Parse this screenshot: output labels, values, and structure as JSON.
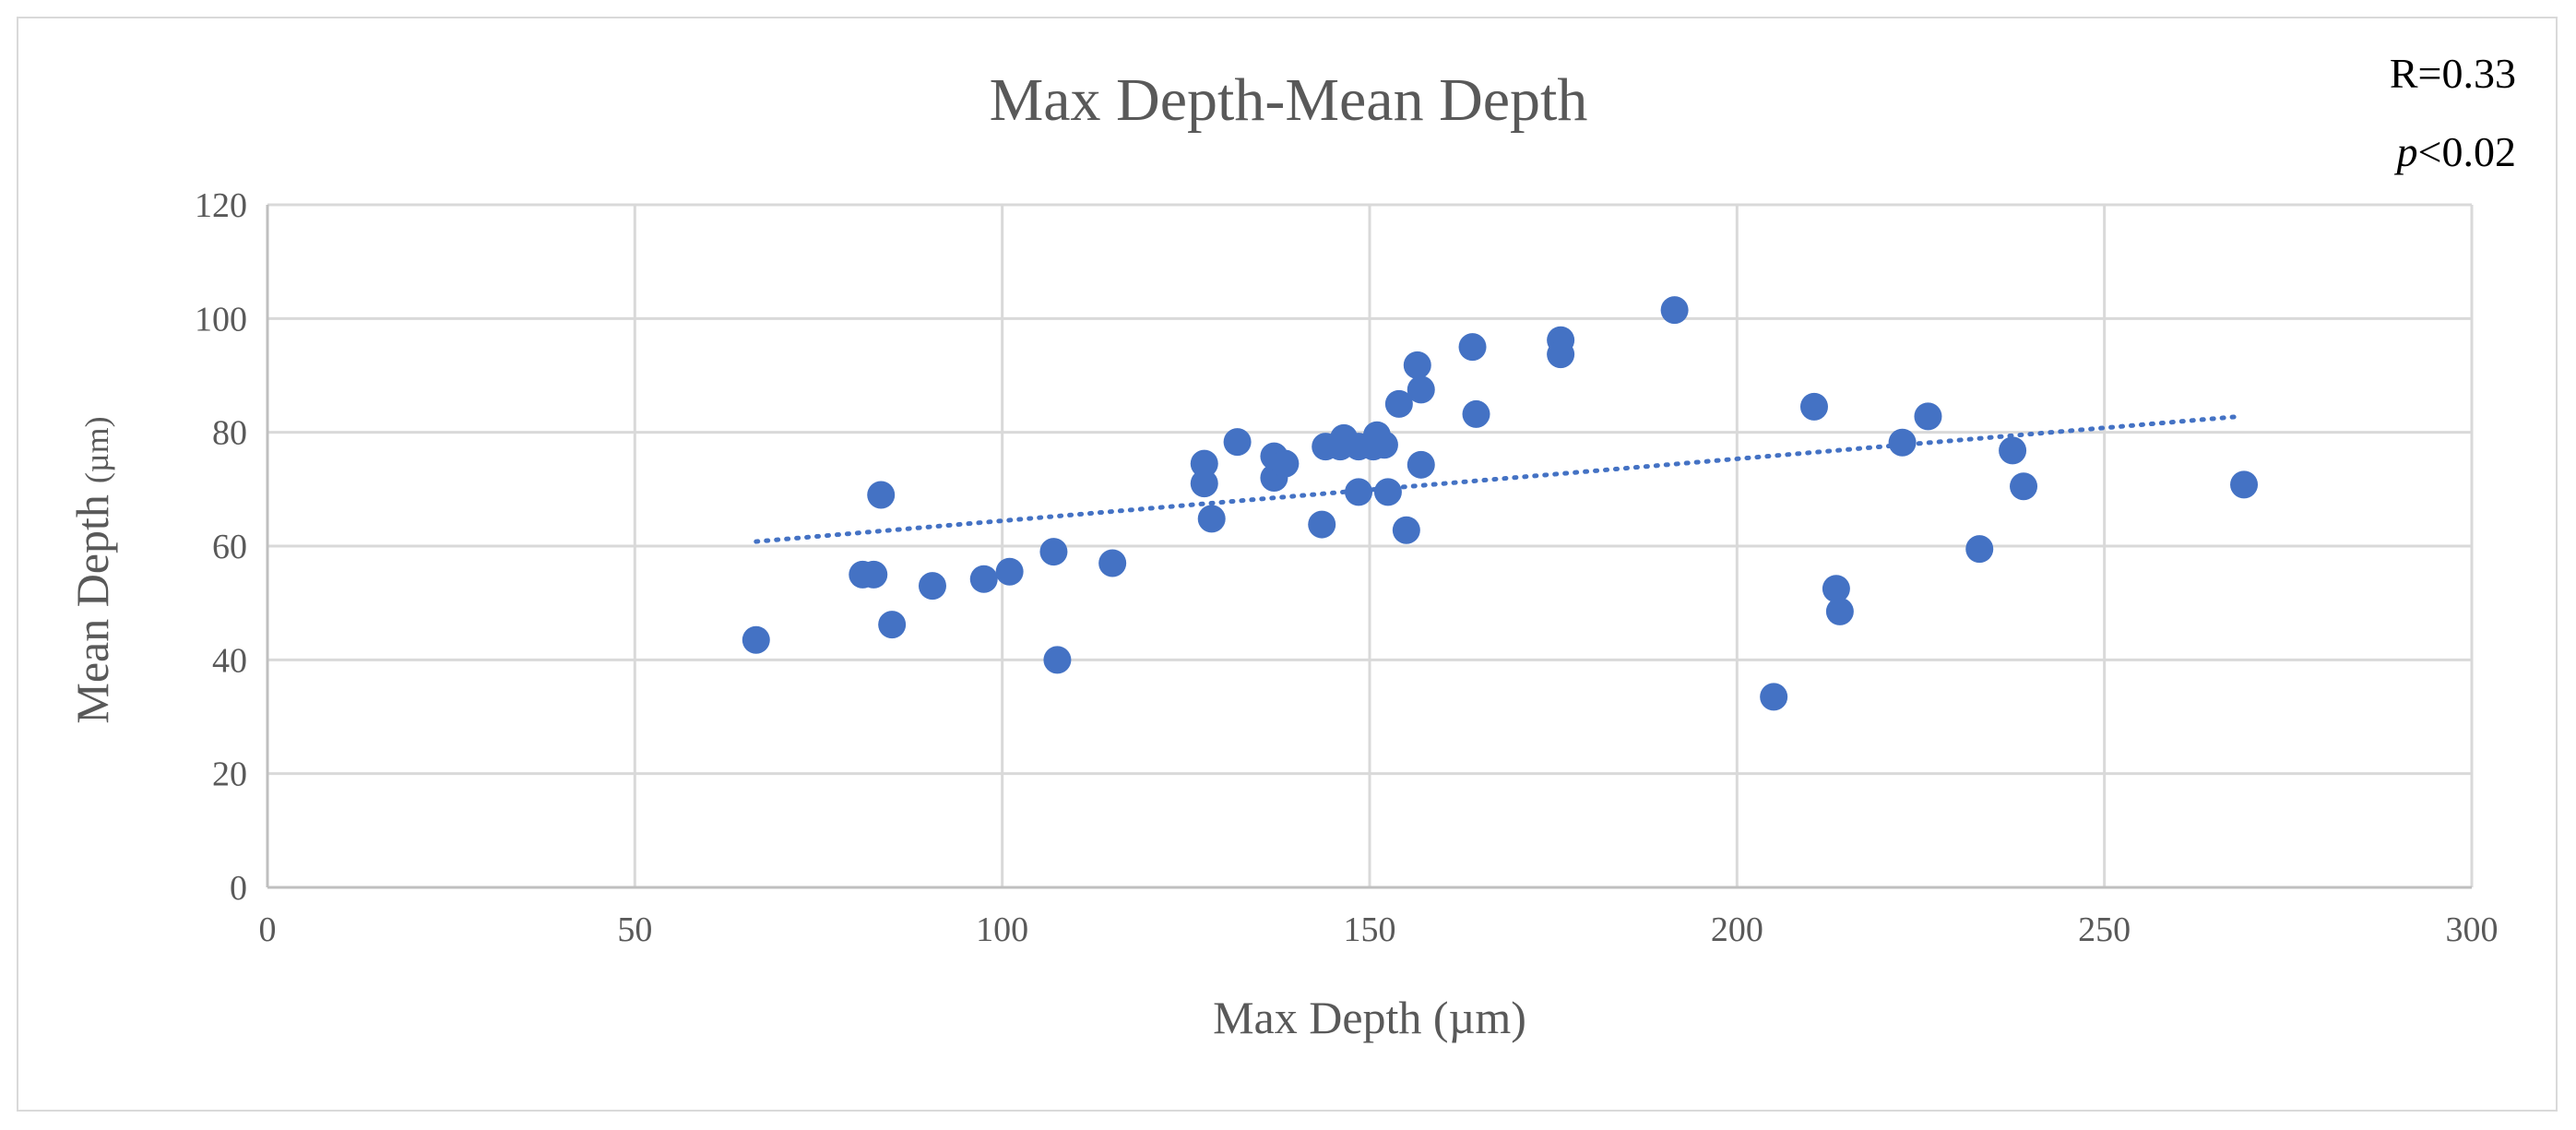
{
  "chart_data": {
    "type": "scatter",
    "title": "Max Depth-Mean Depth",
    "xlabel": "Max Depth (µm)",
    "ylabel_main": "Mean Depth",
    "ylabel_unit": "(µm)",
    "xlim": [
      0,
      300
    ],
    "ylim": [
      0,
      120
    ],
    "xticks": [
      0,
      50,
      100,
      150,
      200,
      250,
      300
    ],
    "yticks": [
      0,
      20,
      40,
      60,
      80,
      100,
      120
    ],
    "grid": true,
    "marker_color": "#4472c4",
    "trendline": {
      "type": "linear",
      "style": "dotted",
      "x": [
        66.5,
        268.5
      ],
      "y": [
        60.8,
        82.8
      ],
      "color": "#4472c4"
    },
    "annotations": {
      "r": "R=0.33",
      "p_symbol": "p",
      "p_rest": "<0.02"
    },
    "points": [
      [
        66.5,
        43.5
      ],
      [
        81,
        55
      ],
      [
        82.5,
        55
      ],
      [
        83.5,
        69
      ],
      [
        85,
        46.2
      ],
      [
        90.5,
        53
      ],
      [
        97.5,
        54.2
      ],
      [
        101,
        55.5
      ],
      [
        107,
        59
      ],
      [
        107.5,
        40
      ],
      [
        115,
        57
      ],
      [
        127.5,
        74.5
      ],
      [
        127.5,
        71
      ],
      [
        128.5,
        64.8
      ],
      [
        132,
        78.3
      ],
      [
        137,
        72
      ],
      [
        137,
        75.8
      ],
      [
        138.5,
        74.5
      ],
      [
        143.5,
        63.8
      ],
      [
        144,
        77.5
      ],
      [
        146,
        77.5
      ],
      [
        146.5,
        79
      ],
      [
        148.5,
        77.5
      ],
      [
        148.5,
        69.5
      ],
      [
        150.5,
        77.5
      ],
      [
        151,
        79.5
      ],
      [
        152,
        77.8
      ],
      [
        152.5,
        69.5
      ],
      [
        154,
        85
      ],
      [
        155,
        62.8
      ],
      [
        156.5,
        91.8
      ],
      [
        157,
        87.5
      ],
      [
        157,
        74.3
      ],
      [
        164,
        95
      ],
      [
        164.5,
        83.2
      ],
      [
        176,
        96.2
      ],
      [
        176,
        93.7
      ],
      [
        191.5,
        101.5
      ],
      [
        205,
        33.5
      ],
      [
        210.5,
        84.5
      ],
      [
        213.5,
        52.5
      ],
      [
        214,
        48.5
      ],
      [
        222.5,
        78.2
      ],
      [
        226,
        82.8
      ],
      [
        233,
        59.5
      ],
      [
        237.5,
        76.8
      ],
      [
        239,
        70.5
      ],
      [
        269,
        70.8
      ]
    ]
  }
}
